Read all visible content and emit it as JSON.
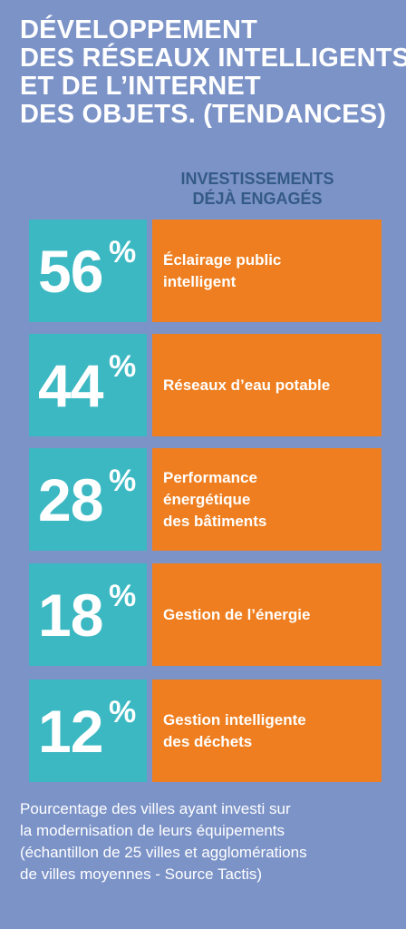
{
  "title_lines": [
    "DÉVELOPPEMENT",
    "DES RÉSEAUX INTELLIGENTS",
    "ET DE L’INTERNET",
    "DES OBJETS. (TENDANCES)"
  ],
  "investments_header_lines": [
    "INVESTISSEMENTS",
    "DÉJÀ ENGAGÉS"
  ],
  "items": [
    {
      "percent": "56",
      "label_lines": [
        "Éclairage public",
        "intelligent"
      ]
    },
    {
      "percent": "44",
      "label_lines": [
        "Réseaux d’eau potable"
      ]
    },
    {
      "percent": "28",
      "label_lines": [
        "Performance",
        "énergétique",
        "des bâtiments"
      ]
    },
    {
      "percent": "18",
      "label_lines": [
        "Gestion de l’énergie"
      ]
    },
    {
      "percent": "12",
      "label_lines": [
        "Gestion intelligente",
        "des déchets"
      ]
    }
  ],
  "percent_symbol": "%",
  "footnote_lines": [
    "Pourcentage des villes ayant investi sur",
    "la modernisation de leurs équipements",
    "(échantillon de 25 villes et agglomérations",
    "de villes moyennes - Source Tactis)"
  ],
  "colors": {
    "background": "#7c93c8",
    "percent_box": "#3cb8c3",
    "label_box": "#ee7e1f",
    "header_text": "#345a86"
  }
}
